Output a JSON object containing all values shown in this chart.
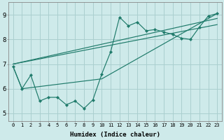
{
  "background_color": "#ceeaea",
  "grid_color": "#aacfcf",
  "line_color": "#1e7a6a",
  "x_label": "Humidex (Indice chaleur)",
  "ylim": [
    4.7,
    9.5
  ],
  "xlim": [
    -0.5,
    23.5
  ],
  "yticks": [
    5,
    6,
    7,
    8,
    9
  ],
  "xticks": [
    0,
    1,
    2,
    3,
    4,
    5,
    6,
    7,
    8,
    9,
    10,
    11,
    12,
    13,
    14,
    15,
    16,
    17,
    18,
    19,
    20,
    21,
    22,
    23
  ],
  "series": [
    {
      "x": [
        0,
        1,
        2,
        3,
        4,
        5,
        6,
        7,
        8,
        9,
        10,
        11,
        12,
        13,
        14,
        15,
        16,
        17,
        18,
        19,
        20,
        21,
        22,
        23
      ],
      "y": [
        6.9,
        6.0,
        6.55,
        5.5,
        5.65,
        5.65,
        5.35,
        5.5,
        5.2,
        5.55,
        6.6,
        7.5,
        8.9,
        8.55,
        8.7,
        8.35,
        8.4,
        8.3,
        8.2,
        8.05,
        8.0,
        8.5,
        8.95,
        9.05
      ],
      "has_markers": true
    },
    {
      "x": [
        0,
        23
      ],
      "y": [
        7.0,
        8.85
      ],
      "has_markers": false
    },
    {
      "x": [
        0,
        23
      ],
      "y": [
        7.0,
        8.6
      ],
      "has_markers": false
    },
    {
      "x": [
        0,
        1,
        10,
        23
      ],
      "y": [
        6.9,
        6.0,
        6.4,
        9.05
      ],
      "has_markers": false
    }
  ]
}
